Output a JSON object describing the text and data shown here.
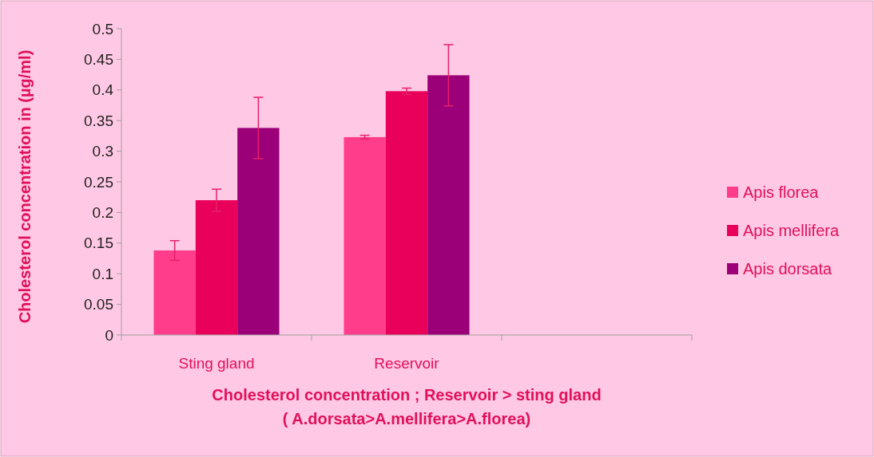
{
  "chart_data": {
    "type": "bar",
    "xlabel": "Cholesterol concentration ; Reservoir > sting gland\n( A.dorsata>A.mellifera>A.florea)",
    "ylabel": "Cholesterol concentration in (µg/ml)",
    "categories": [
      "Sting gland",
      "Reservoir",
      null
    ],
    "series": [
      {
        "name": "Apis florea",
        "color": "#ff3d8b",
        "values": [
          0.138,
          0.323,
          null
        ],
        "errors": [
          0.016,
          0.003,
          null
        ]
      },
      {
        "name": "Apis mellifera",
        "color": "#e8005a",
        "values": [
          0.22,
          0.398,
          null
        ],
        "errors": [
          0.018,
          0.005,
          null
        ]
      },
      {
        "name": "Apis dorsata",
        "color": "#9b0078",
        "values": [
          0.338,
          0.424,
          null
        ],
        "errors": [
          0.05,
          0.05,
          null
        ]
      }
    ],
    "ylim": [
      0,
      0.5
    ],
    "yticks": [
      0,
      0.05,
      0.1,
      0.15,
      0.2,
      0.25,
      0.3,
      0.35,
      0.4,
      0.45,
      0.5
    ],
    "grid": false,
    "legend": "right"
  }
}
